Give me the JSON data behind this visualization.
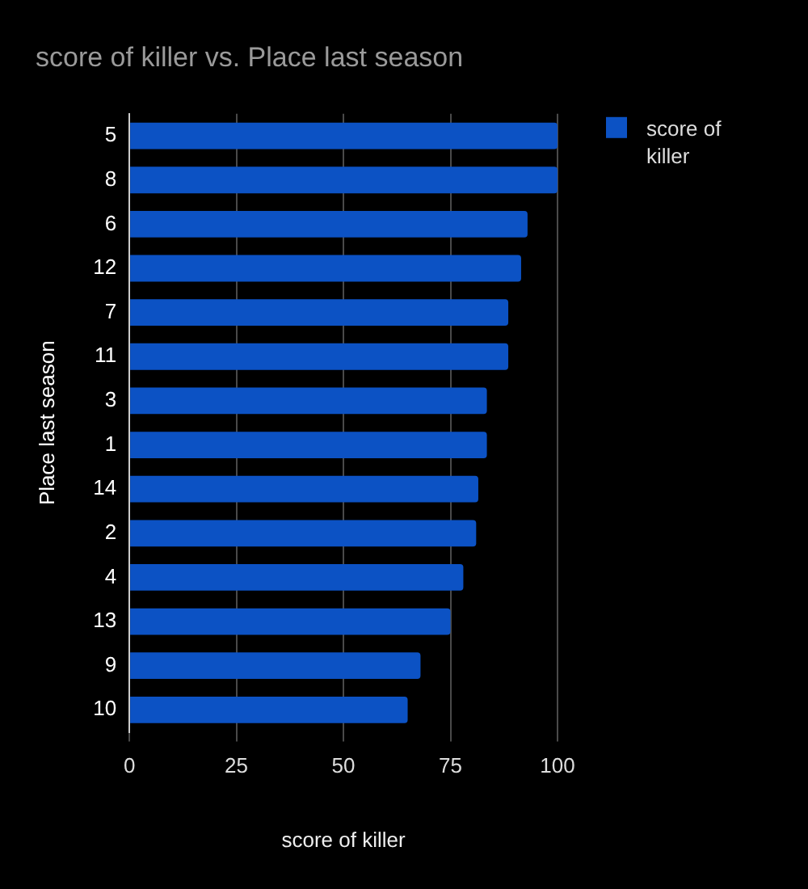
{
  "chart_data": {
    "type": "bar",
    "orientation": "horizontal",
    "title": "score of killer vs. Place last season",
    "xlabel": "score of killer",
    "ylabel": "Place last season",
    "categories": [
      "5",
      "8",
      "6",
      "12",
      "7",
      "11",
      "3",
      "1",
      "14",
      "2",
      "4",
      "13",
      "9",
      "10"
    ],
    "series": [
      {
        "name": "score of killer",
        "color": "#0c52c4",
        "values": [
          100,
          100,
          93,
          91.5,
          88.5,
          88.5,
          83.5,
          83.5,
          81.5,
          81,
          78,
          75,
          68,
          65
        ]
      }
    ],
    "xlim": [
      0,
      100
    ],
    "xticks": [
      0,
      25,
      50,
      75,
      100
    ],
    "grid": "x",
    "legend": "top right"
  }
}
